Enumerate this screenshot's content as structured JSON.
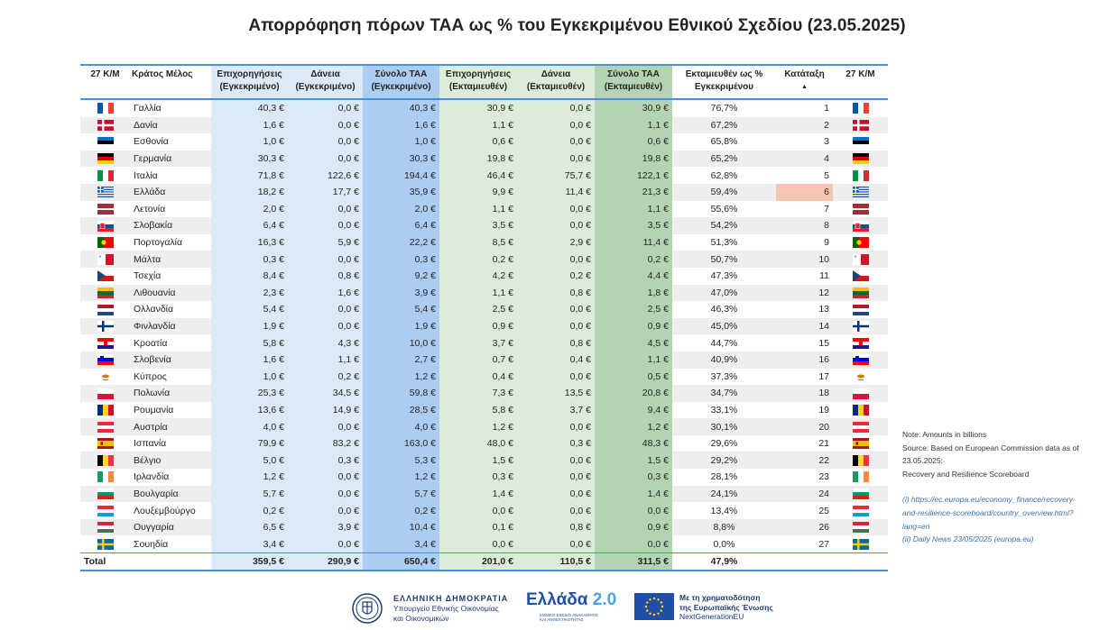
{
  "title": "Απορρόφηση πόρων ΤΑΑ ως % του Εγκεκριμένου Εθνικού Σχεδίου (23.05.2025)",
  "headers": {
    "ms1": "27 Κ/Μ",
    "country": "Κράτος Μέλος",
    "grants_appr": "Επιχορηγήσεις (Εγκεκριμένο)",
    "loans_appr": "Δάνεια (Εγκεκριμένο)",
    "total_appr": "Σύνολο ΤΑΑ (Εγκεκριμένο)",
    "grants_disb": "Επιχορηγήσεις (Εκταμιευθέν)",
    "loans_disb": "Δάνεια (Εκταμιευθέν)",
    "total_disb": "Σύνολο ΤΑΑ (Εκταμιευθέν)",
    "pct": "Εκταμιευθέν ως % Εγκεκριμένου",
    "rank": "Κατάταξη",
    "sort_icon": "▲",
    "ms2": "27 Κ/Μ"
  },
  "rows": [
    {
      "code": "FR",
      "name": "Γαλλία",
      "ga": "40,3 €",
      "la": "0,0 €",
      "ta": "40,3 €",
      "gd": "30,9 €",
      "ld": "0,0 €",
      "td": "30,9 €",
      "pct": "76,7%",
      "rank": "1"
    },
    {
      "code": "DK",
      "name": "Δανία",
      "ga": "1,6 €",
      "la": "0,0 €",
      "ta": "1,6 €",
      "gd": "1,1 €",
      "ld": "0,0 €",
      "td": "1,1 €",
      "pct": "67,2%",
      "rank": "2"
    },
    {
      "code": "EE",
      "name": "Εσθονία",
      "ga": "1,0 €",
      "la": "0,0 €",
      "ta": "1,0 €",
      "gd": "0,6 €",
      "ld": "0,0 €",
      "td": "0,6 €",
      "pct": "65,8%",
      "rank": "3"
    },
    {
      "code": "DE",
      "name": "Γερμανία",
      "ga": "30,3 €",
      "la": "0,0 €",
      "ta": "30,3 €",
      "gd": "19,8 €",
      "ld": "0,0 €",
      "td": "19,8 €",
      "pct": "65,2%",
      "rank": "4"
    },
    {
      "code": "IT",
      "name": "Ιταλία",
      "ga": "71,8 €",
      "la": "122,6 €",
      "ta": "194,4 €",
      "gd": "46,4 €",
      "ld": "75,7 €",
      "td": "122,1 €",
      "pct": "62,8%",
      "rank": "5"
    },
    {
      "code": "GR",
      "name": "Ελλάδα",
      "ga": "18,2 €",
      "la": "17,7 €",
      "ta": "35,9 €",
      "gd": "9,9 €",
      "ld": "11,4 €",
      "td": "21,3 €",
      "pct": "59,4%",
      "rank": "6"
    },
    {
      "code": "LV",
      "name": "Λετονία",
      "ga": "2,0 €",
      "la": "0,0 €",
      "ta": "2,0 €",
      "gd": "1,1 €",
      "ld": "0,0 €",
      "td": "1,1 €",
      "pct": "55,6%",
      "rank": "7"
    },
    {
      "code": "SK",
      "name": "Σλοβακία",
      "ga": "6,4 €",
      "la": "0,0 €",
      "ta": "6,4 €",
      "gd": "3,5 €",
      "ld": "0,0 €",
      "td": "3,5 €",
      "pct": "54,2%",
      "rank": "8"
    },
    {
      "code": "PT",
      "name": "Πορτογαλία",
      "ga": "16,3 €",
      "la": "5,9 €",
      "ta": "22,2 €",
      "gd": "8,5 €",
      "ld": "2,9 €",
      "td": "11,4 €",
      "pct": "51,3%",
      "rank": "9"
    },
    {
      "code": "MT",
      "name": "Μάλτα",
      "ga": "0,3 €",
      "la": "0,0 €",
      "ta": "0,3 €",
      "gd": "0,2 €",
      "ld": "0,0 €",
      "td": "0,2 €",
      "pct": "50,7%",
      "rank": "10"
    },
    {
      "code": "CZ",
      "name": "Τσεχία",
      "ga": "8,4 €",
      "la": "0,8 €",
      "ta": "9,2 €",
      "gd": "4,2 €",
      "ld": "0,2 €",
      "td": "4,4 €",
      "pct": "47,3%",
      "rank": "11"
    },
    {
      "code": "LT",
      "name": "Λιθουανία",
      "ga": "2,3 €",
      "la": "1,6 €",
      "ta": "3,9 €",
      "gd": "1,1 €",
      "ld": "0,8 €",
      "td": "1,8 €",
      "pct": "47,0%",
      "rank": "12"
    },
    {
      "code": "NL",
      "name": "Ολλανδία",
      "ga": "5,4 €",
      "la": "0,0 €",
      "ta": "5,4 €",
      "gd": "2,5 €",
      "ld": "0,0 €",
      "td": "2,5 €",
      "pct": "46,3%",
      "rank": "13"
    },
    {
      "code": "FI",
      "name": "Φινλανδία",
      "ga": "1,9 €",
      "la": "0,0 €",
      "ta": "1,9 €",
      "gd": "0,9 €",
      "ld": "0,0 €",
      "td": "0,9 €",
      "pct": "45,0%",
      "rank": "14"
    },
    {
      "code": "HR",
      "name": "Κροατία",
      "ga": "5,8 €",
      "la": "4,3 €",
      "ta": "10,0 €",
      "gd": "3,7 €",
      "ld": "0,8 €",
      "td": "4,5 €",
      "pct": "44,7%",
      "rank": "15"
    },
    {
      "code": "SI",
      "name": "Σλοβενία",
      "ga": "1,6 €",
      "la": "1,1 €",
      "ta": "2,7 €",
      "gd": "0,7 €",
      "ld": "0,4 €",
      "td": "1,1 €",
      "pct": "40,9%",
      "rank": "16"
    },
    {
      "code": "CY",
      "name": "Κύπρος",
      "ga": "1,0 €",
      "la": "0,2 €",
      "ta": "1,2 €",
      "gd": "0,4 €",
      "ld": "0,0 €",
      "td": "0,5 €",
      "pct": "37,3%",
      "rank": "17"
    },
    {
      "code": "PL",
      "name": "Πολωνία",
      "ga": "25,3 €",
      "la": "34,5 €",
      "ta": "59,8 €",
      "gd": "7,3 €",
      "ld": "13,5 €",
      "td": "20,8 €",
      "pct": "34,7%",
      "rank": "18"
    },
    {
      "code": "RO",
      "name": "Ρουμανία",
      "ga": "13,6 €",
      "la": "14,9 €",
      "ta": "28,5 €",
      "gd": "5,8 €",
      "ld": "3,7 €",
      "td": "9,4 €",
      "pct": "33,1%",
      "rank": "19"
    },
    {
      "code": "AT",
      "name": "Αυστρία",
      "ga": "4,0 €",
      "la": "0,0 €",
      "ta": "4,0 €",
      "gd": "1,2 €",
      "ld": "0,0 €",
      "td": "1,2 €",
      "pct": "30,1%",
      "rank": "20"
    },
    {
      "code": "ES",
      "name": "Ισπανία",
      "ga": "79,9 €",
      "la": "83,2 €",
      "ta": "163,0 €",
      "gd": "48,0 €",
      "ld": "0,3 €",
      "td": "48,3 €",
      "pct": "29,6%",
      "rank": "21"
    },
    {
      "code": "BE",
      "name": "Βέλγιο",
      "ga": "5,0 €",
      "la": "0,3 €",
      "ta": "5,3 €",
      "gd": "1,5 €",
      "ld": "0,0 €",
      "td": "1,5 €",
      "pct": "29,2%",
      "rank": "22"
    },
    {
      "code": "IE",
      "name": "Ιρλανδία",
      "ga": "1,2 €",
      "la": "0,0 €",
      "ta": "1,2 €",
      "gd": "0,3 €",
      "ld": "0,0 €",
      "td": "0,3 €",
      "pct": "28,1%",
      "rank": "23"
    },
    {
      "code": "BG",
      "name": "Βουλγαρία",
      "ga": "5,7 €",
      "la": "0,0 €",
      "ta": "5,7 €",
      "gd": "1,4 €",
      "ld": "0,0 €",
      "td": "1,4 €",
      "pct": "24,1%",
      "rank": "24"
    },
    {
      "code": "LU",
      "name": "Λουξεμβούργο",
      "ga": "0,2 €",
      "la": "0,0 €",
      "ta": "0,2 €",
      "gd": "0,0 €",
      "ld": "0,0 €",
      "td": "0,0 €",
      "pct": "13,4%",
      "rank": "25"
    },
    {
      "code": "HU",
      "name": "Ουγγαρία",
      "ga": "6,5 €",
      "la": "3,9 €",
      "ta": "10,4 €",
      "gd": "0,1 €",
      "ld": "0,8 €",
      "td": "0,9 €",
      "pct": "8,8%",
      "rank": "26"
    },
    {
      "code": "SE",
      "name": "Σουηδία",
      "ga": "3,4 €",
      "la": "0,0 €",
      "ta": "3,4 €",
      "gd": "0,0 €",
      "ld": "0,0 €",
      "td": "0,0 €",
      "pct": "0,0%",
      "rank": "27"
    }
  ],
  "total": {
    "label": "Total",
    "ga": "359,5 €",
    "la": "290,9 €",
    "ta": "650,4 €",
    "gd": "201,0 €",
    "ld": "110,5 €",
    "td": "311,5 €",
    "pct": "47,9%"
  },
  "highlight_rank": "6",
  "highlight_color": "#f4c6b1",
  "notes": {
    "l1": "Note: Amounts in billions",
    "l2": "Source: Based on European Commission data as of",
    "l3": "23.05.2025:",
    "l4": "Recovery and Resilience Scoreboard",
    "link1a": "(i) https://ec.europa.eu/economy_finance/recovery-",
    "link1b": "and-resilience-scoreboard/country_overview.html?",
    "link1c": "lang=en",
    "link2": "(ii) Daily News 23/05/2025 (europa.eu)"
  },
  "footer": {
    "gov1": "ΕΛΛΗΝΙΚΗ ΔΗΜΟΚΡΑΤΙΑ",
    "gov2": "Υπουργείο Εθνικής Οικονομίας",
    "gov3": "και Οικονομικών",
    "greece20_a": "Ελλάδα ",
    "greece20_b": "2.0",
    "greece20_sub1": "ΕΘΝΙΚΟ ΣΧΕΔΙΟ ΑΝΑΚΑΜΨΗΣ",
    "greece20_sub2": "ΚΑΙ ΑΝΘΕΚΤΙΚΟΤΗΤΑΣ",
    "eu1": "Με τη χρηματοδότηση",
    "eu2": "της Ευρωπαϊκής Ένωσης",
    "eu3": "NextGenerationEU"
  },
  "colors": {
    "accent_border": "#4a90d9",
    "approved_light": "#dce9f7",
    "approved_total": "#acccf2",
    "disbursed_light": "#dcecd9",
    "disbursed_total": "#b4d3b2"
  }
}
